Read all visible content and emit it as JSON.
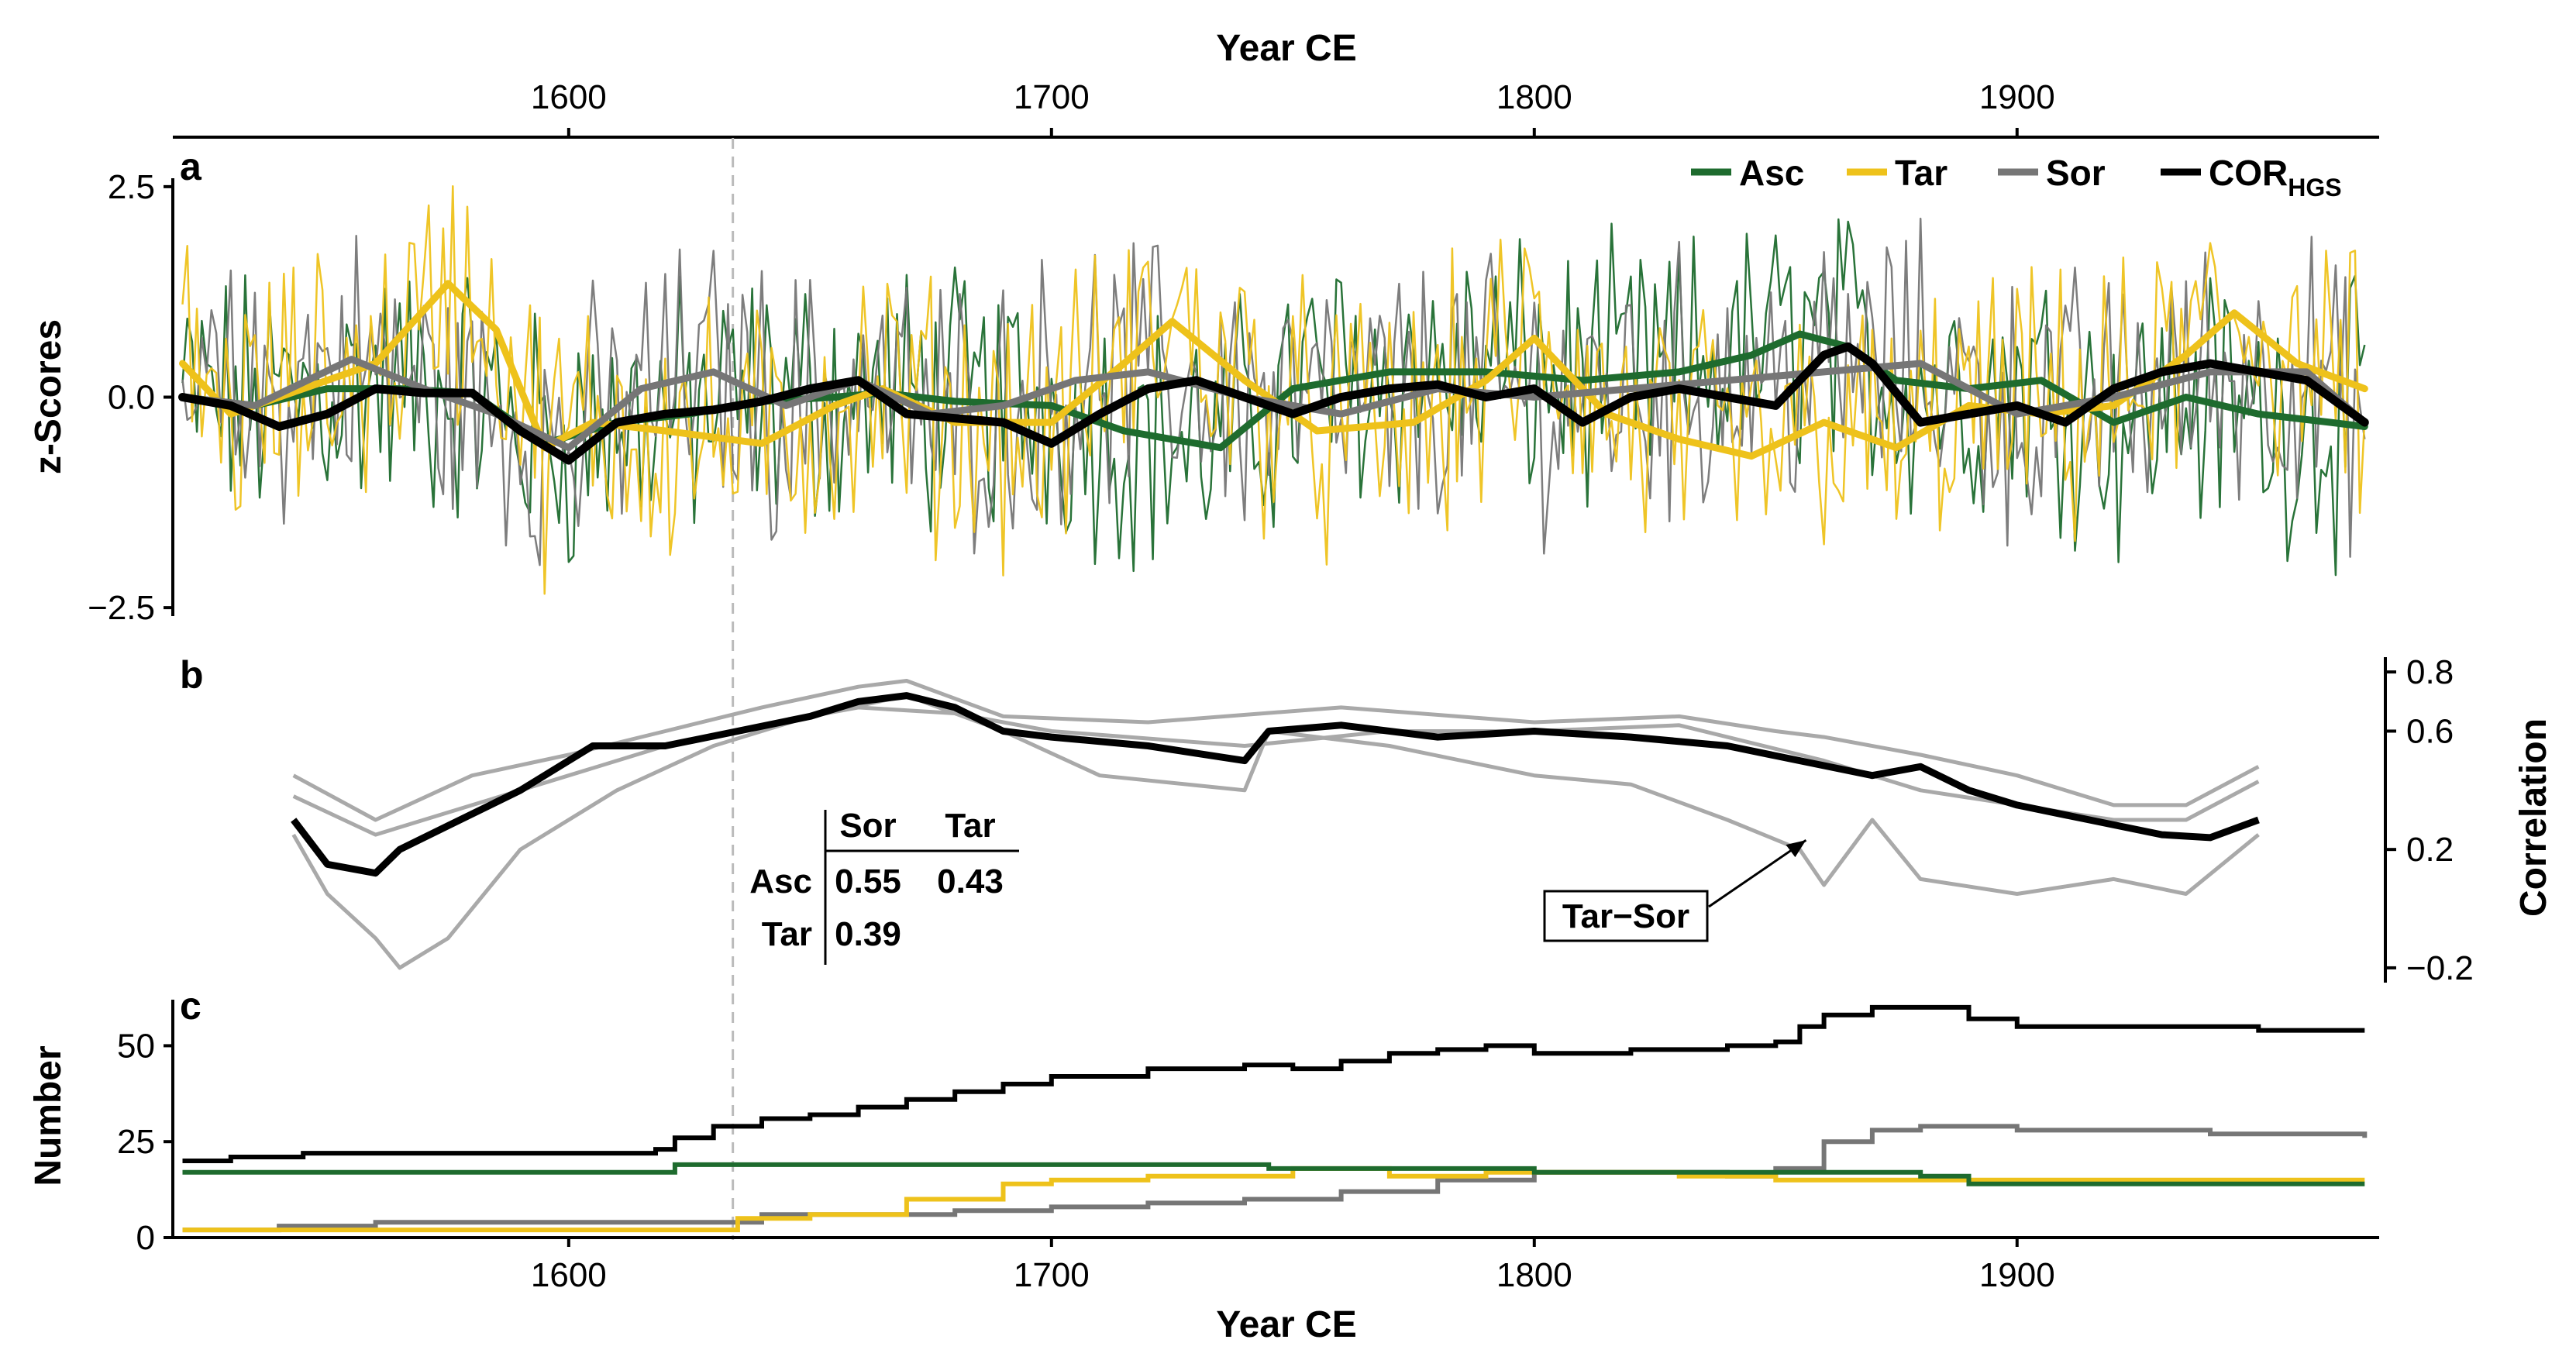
{
  "figure": {
    "x_axis": {
      "title_top": "Year CE",
      "title_bottom": "Year CE",
      "domain": [
        1518,
        1975
      ],
      "ticks": [
        1600,
        1700,
        1800,
        1900
      ]
    },
    "vline_year": 1634,
    "colors": {
      "Asc": "#1e6b2e",
      "Tar": "#eec21b",
      "Sor": "#767676",
      "COR": "#000000",
      "corr_grey": "#a9a9a9"
    }
  },
  "chart_data": [
    {
      "panel": "a",
      "type": "line",
      "ylabel": "z-Scores",
      "ylim": [
        -2.6,
        2.6
      ],
      "yticks": [
        2.5,
        0.0,
        -2.5
      ],
      "ytick_labels": [
        "2.5",
        "0.0",
        "−2.5"
      ],
      "legend": [
        {
          "key": "Asc",
          "label": "Asc",
          "sub": ""
        },
        {
          "key": "Tar",
          "label": "Tar",
          "sub": ""
        },
        {
          "key": "Sor",
          "label": "Sor",
          "sub": ""
        },
        {
          "key": "COR",
          "label": "COR",
          "sub": "HGS"
        }
      ],
      "smooth_series": [
        {
          "name": "Asc",
          "x": [
            1520,
            1535,
            1550,
            1565,
            1580,
            1595,
            1610,
            1625,
            1640,
            1655,
            1665,
            1680,
            1700,
            1715,
            1735,
            1750,
            1770,
            1790,
            1810,
            1830,
            1845,
            1855,
            1865,
            1875,
            1890,
            1905,
            1920,
            1935,
            1950,
            1965,
            1972
          ],
          "y": [
            0.0,
            -0.1,
            0.1,
            0.1,
            0.05,
            -0.55,
            -0.3,
            -0.2,
            -0.05,
            0.0,
            0.05,
            -0.05,
            -0.1,
            -0.4,
            -0.6,
            0.1,
            0.3,
            0.3,
            0.2,
            0.3,
            0.5,
            0.75,
            0.6,
            0.2,
            0.1,
            0.2,
            -0.3,
            0.0,
            -0.2,
            -0.3,
            -0.35
          ]
        },
        {
          "name": "Tar",
          "x": [
            1520,
            1530,
            1545,
            1560,
            1575,
            1585,
            1595,
            1605,
            1620,
            1640,
            1655,
            1665,
            1680,
            1700,
            1715,
            1725,
            1740,
            1755,
            1775,
            1790,
            1800,
            1815,
            1830,
            1845,
            1860,
            1875,
            1890,
            1905,
            1920,
            1935,
            1945,
            1958,
            1972
          ],
          "y": [
            0.4,
            -0.2,
            0.1,
            0.4,
            1.35,
            0.8,
            -0.6,
            -0.3,
            -0.4,
            -0.55,
            -0.1,
            0.1,
            -0.3,
            -0.3,
            0.4,
            0.9,
            0.2,
            -0.4,
            -0.3,
            0.2,
            0.7,
            -0.2,
            -0.5,
            -0.7,
            -0.3,
            -0.6,
            -0.1,
            -0.2,
            -0.1,
            0.5,
            1.0,
            0.4,
            0.1
          ]
        },
        {
          "name": "Sor",
          "x": [
            1520,
            1535,
            1555,
            1570,
            1585,
            1600,
            1615,
            1630,
            1645,
            1660,
            1675,
            1690,
            1705,
            1720,
            1740,
            1760,
            1780,
            1800,
            1820,
            1840,
            1860,
            1880,
            1900,
            1920,
            1940,
            1960,
            1972
          ],
          "y": [
            0.0,
            -0.1,
            0.45,
            0.1,
            -0.2,
            -0.6,
            0.1,
            0.3,
            -0.1,
            0.2,
            -0.2,
            -0.1,
            0.2,
            0.3,
            0.0,
            -0.2,
            0.1,
            0.0,
            0.1,
            0.2,
            0.3,
            0.4,
            -0.2,
            0.0,
            0.3,
            0.3,
            -0.3
          ]
        },
        {
          "name": "COR",
          "x": [
            1520,
            1530,
            1540,
            1550,
            1560,
            1570,
            1580,
            1590,
            1600,
            1610,
            1620,
            1630,
            1640,
            1650,
            1660,
            1670,
            1680,
            1690,
            1700,
            1710,
            1720,
            1730,
            1740,
            1750,
            1760,
            1770,
            1780,
            1790,
            1800,
            1810,
            1820,
            1830,
            1840,
            1850,
            1860,
            1865,
            1870,
            1880,
            1890,
            1900,
            1910,
            1920,
            1930,
            1940,
            1950,
            1960,
            1972
          ],
          "y": [
            0.0,
            -0.1,
            -0.35,
            -0.2,
            0.1,
            0.05,
            0.05,
            -0.4,
            -0.75,
            -0.3,
            -0.2,
            -0.15,
            -0.05,
            0.1,
            0.2,
            -0.2,
            -0.25,
            -0.3,
            -0.55,
            -0.2,
            0.1,
            0.2,
            0.0,
            -0.2,
            0.0,
            0.1,
            0.15,
            0.0,
            0.1,
            -0.3,
            0.0,
            0.1,
            0.0,
            -0.1,
            0.5,
            0.6,
            0.4,
            -0.3,
            -0.2,
            -0.1,
            -0.3,
            0.1,
            0.3,
            0.4,
            0.3,
            0.2,
            -0.3
          ]
        }
      ],
      "annual_series_note": "Thin lines are noisy annual z-score series (Asc, Tar, Sor) spanning roughly −2.3 to 2.8"
    },
    {
      "panel": "b",
      "type": "line",
      "ylabel": "Correlation",
      "ylim": [
        -0.25,
        0.85
      ],
      "yticks": [
        0.8,
        0.6,
        0.2,
        -0.2
      ],
      "ytick_labels": [
        "0.8",
        "0.6",
        "0.2",
        "−0.2"
      ],
      "series": [
        {
          "name": "COR",
          "x": [
            1543,
            1550,
            1560,
            1565,
            1575,
            1590,
            1605,
            1620,
            1635,
            1650,
            1660,
            1670,
            1680,
            1690,
            1700,
            1720,
            1740,
            1745,
            1760,
            1780,
            1800,
            1820,
            1840,
            1855,
            1870,
            1880,
            1890,
            1900,
            1915,
            1930,
            1940,
            1950
          ],
          "y": [
            0.3,
            0.15,
            0.12,
            0.2,
            0.28,
            0.4,
            0.55,
            0.55,
            0.6,
            0.65,
            0.7,
            0.72,
            0.68,
            0.6,
            0.58,
            0.55,
            0.5,
            0.6,
            0.62,
            0.58,
            0.6,
            0.58,
            0.55,
            0.5,
            0.45,
            0.48,
            0.4,
            0.35,
            0.3,
            0.25,
            0.24,
            0.3
          ]
        },
        {
          "name": "Asc-Sor",
          "x": [
            1543,
            1560,
            1580,
            1600,
            1620,
            1640,
            1660,
            1670,
            1690,
            1720,
            1760,
            1800,
            1830,
            1850,
            1860,
            1880,
            1900,
            1920,
            1935,
            1950
          ],
          "y": [
            0.45,
            0.3,
            0.45,
            0.52,
            0.6,
            0.68,
            0.75,
            0.77,
            0.65,
            0.63,
            0.68,
            0.63,
            0.65,
            0.6,
            0.58,
            0.52,
            0.45,
            0.35,
            0.35,
            0.48
          ]
        },
        {
          "name": "Asc-Tar",
          "x": [
            1543,
            1560,
            1580,
            1600,
            1620,
            1640,
            1660,
            1680,
            1700,
            1740,
            1770,
            1800,
            1830,
            1860,
            1880,
            1900,
            1920,
            1935,
            1950
          ],
          "y": [
            0.38,
            0.25,
            0.35,
            0.45,
            0.55,
            0.62,
            0.68,
            0.66,
            0.6,
            0.55,
            0.6,
            0.6,
            0.62,
            0.5,
            0.4,
            0.35,
            0.3,
            0.3,
            0.43
          ]
        },
        {
          "name": "Tar-Sor",
          "x": [
            1543,
            1550,
            1560,
            1565,
            1575,
            1590,
            1610,
            1630,
            1650,
            1670,
            1690,
            1710,
            1740,
            1745,
            1770,
            1800,
            1820,
            1840,
            1855,
            1860,
            1870,
            1880,
            1900,
            1920,
            1935,
            1950
          ],
          "y": [
            0.25,
            0.05,
            -0.1,
            -0.2,
            -0.1,
            0.2,
            0.4,
            0.55,
            0.65,
            0.72,
            0.6,
            0.45,
            0.4,
            0.6,
            0.55,
            0.45,
            0.42,
            0.3,
            0.2,
            0.08,
            0.3,
            0.1,
            0.05,
            0.1,
            0.05,
            0.25
          ]
        }
      ],
      "callout": {
        "label": "Tar−Sor",
        "points_to_year": 1855,
        "points_to_value": 0.2
      },
      "table": {
        "col_headers": [
          "Sor",
          "Tar"
        ],
        "rows": [
          {
            "label": "Asc",
            "values": [
              "0.55",
              "0.43"
            ]
          },
          {
            "label": "Tar",
            "values": [
              "0.39",
              ""
            ]
          }
        ]
      }
    },
    {
      "panel": "c",
      "type": "line",
      "ylabel": "Number",
      "ylim": [
        0,
        62
      ],
      "yticks": [
        50,
        25,
        0
      ],
      "ytick_labels": [
        "50",
        "25",
        "0"
      ],
      "series": [
        {
          "name": "COR",
          "x": [
            1520,
            1530,
            1545,
            1560,
            1600,
            1618,
            1622,
            1630,
            1640,
            1650,
            1660,
            1670,
            1680,
            1690,
            1700,
            1720,
            1740,
            1750,
            1760,
            1770,
            1780,
            1790,
            1800,
            1810,
            1820,
            1830,
            1840,
            1850,
            1855,
            1860,
            1870,
            1880,
            1890,
            1900,
            1940,
            1950,
            1972
          ],
          "y": [
            20,
            21,
            22,
            22,
            22,
            23,
            26,
            29,
            31,
            32,
            34,
            36,
            38,
            40,
            42,
            44,
            45,
            44,
            46,
            48,
            49,
            50,
            48,
            48,
            49,
            49,
            50,
            51,
            55,
            58,
            60,
            60,
            57,
            55,
            55,
            54,
            54
          ]
        },
        {
          "name": "Asc",
          "x": [
            1520,
            1620,
            1622,
            1740,
            1745,
            1790,
            1800,
            1860,
            1880,
            1890,
            1972
          ],
          "y": [
            17,
            17,
            19,
            19,
            18,
            18,
            17,
            17,
            16,
            14,
            14
          ]
        },
        {
          "name": "Tar",
          "x": [
            1520,
            1625,
            1635,
            1650,
            1670,
            1690,
            1700,
            1720,
            1750,
            1770,
            1790,
            1800,
            1830,
            1850,
            1880,
            1972
          ],
          "y": [
            2,
            2,
            5,
            6,
            10,
            14,
            15,
            16,
            18,
            16,
            17,
            17,
            16,
            15,
            15,
            15
          ]
        },
        {
          "name": "Sor",
          "x": [
            1520,
            1540,
            1560,
            1620,
            1640,
            1660,
            1680,
            1700,
            1720,
            1740,
            1760,
            1780,
            1800,
            1820,
            1840,
            1850,
            1860,
            1870,
            1880,
            1900,
            1940,
            1972
          ],
          "y": [
            2,
            3,
            4,
            4,
            6,
            6,
            7,
            8,
            9,
            10,
            12,
            15,
            17,
            17,
            16,
            18,
            25,
            28,
            29,
            28,
            27,
            26
          ]
        }
      ]
    }
  ]
}
